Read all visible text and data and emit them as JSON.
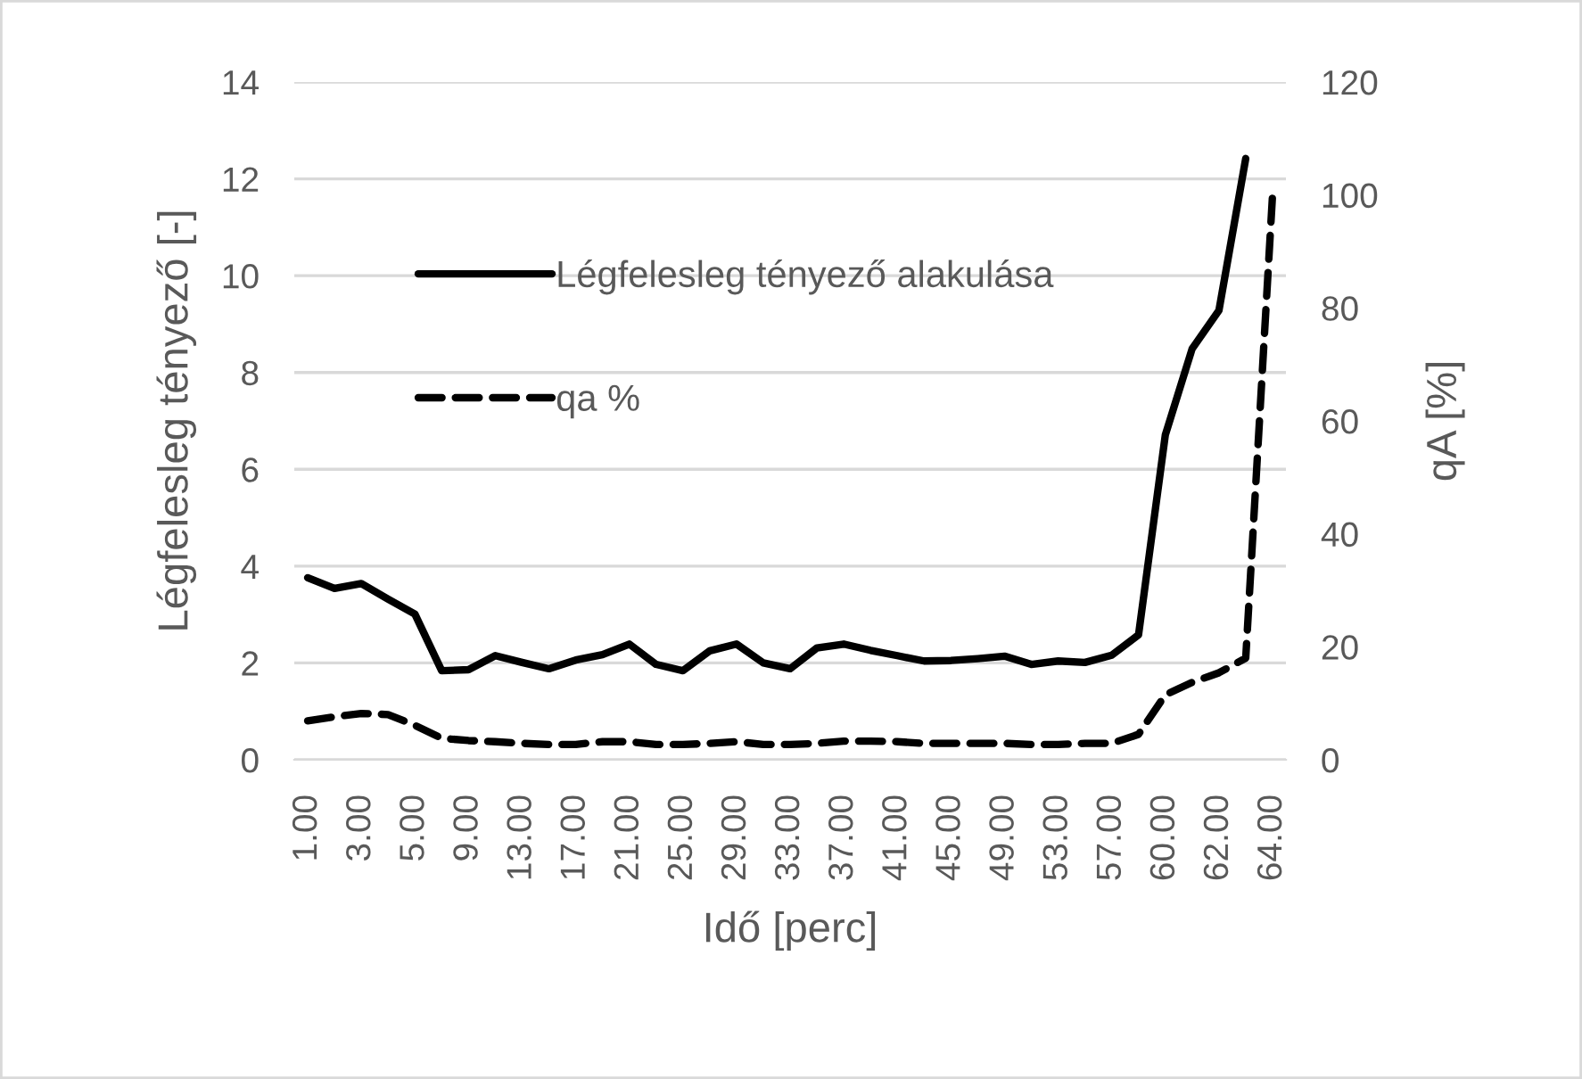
{
  "chart_data": {
    "type": "line",
    "xlabel": "Idő [perc]",
    "ylabel": "Légfelesleg tényező [-]",
    "y2label": "qA [%]",
    "categories": [
      "1.00",
      null,
      "3.00",
      null,
      "5.00",
      null,
      "9.00",
      null,
      "13.00",
      null,
      "17.00",
      null,
      "21.00",
      null,
      "25.00",
      null,
      "29.00",
      null,
      "33.00",
      null,
      "37.00",
      null,
      "41.00",
      null,
      "45.00",
      null,
      "49.00",
      null,
      "53.00",
      null,
      "57.00",
      null,
      "60.00",
      null,
      "62.00",
      null,
      "64.00"
    ],
    "series": [
      {
        "name": "Légfelesleg tényező alakulása",
        "color": "#000000",
        "line_style": "solid",
        "values": [
          3.76,
          3.54,
          3.64,
          3.32,
          3.01,
          1.84,
          1.86,
          2.15,
          2.01,
          1.88,
          2.06,
          2.17,
          2.39,
          1.97,
          1.84,
          2.25,
          2.39,
          2.0,
          1.88,
          2.31,
          2.39,
          2.26,
          2.15,
          2.04,
          2.05,
          2.09,
          2.14,
          1.97,
          2.04,
          2.01,
          2.16,
          2.58,
          6.71,
          8.49,
          9.28,
          12.42,
          null
        ]
      },
      {
        "name": "qa %",
        "color": "#000000",
        "line_style": "dashed",
        "axis": "y2",
        "values": [
          6.9,
          7.6,
          8.2,
          8.0,
          6.1,
          3.8,
          3.4,
          3.2,
          2.9,
          2.7,
          2.7,
          3.2,
          3.2,
          2.7,
          2.7,
          2.9,
          3.2,
          2.7,
          2.7,
          2.9,
          3.3,
          3.3,
          3.2,
          2.9,
          2.9,
          2.9,
          2.9,
          2.7,
          2.7,
          2.9,
          2.9,
          4.5,
          11.5,
          13.7,
          15.4,
          18,
          100
        ]
      }
    ],
    "ylim": [
      0,
      14
    ],
    "yticks": [
      0,
      2,
      4,
      6,
      8,
      10,
      12,
      14
    ],
    "y2lim": [
      0,
      120
    ],
    "y2ticks": [
      0,
      20,
      40,
      60,
      80,
      100,
      120
    ],
    "grid": "y",
    "legend": "top left"
  }
}
